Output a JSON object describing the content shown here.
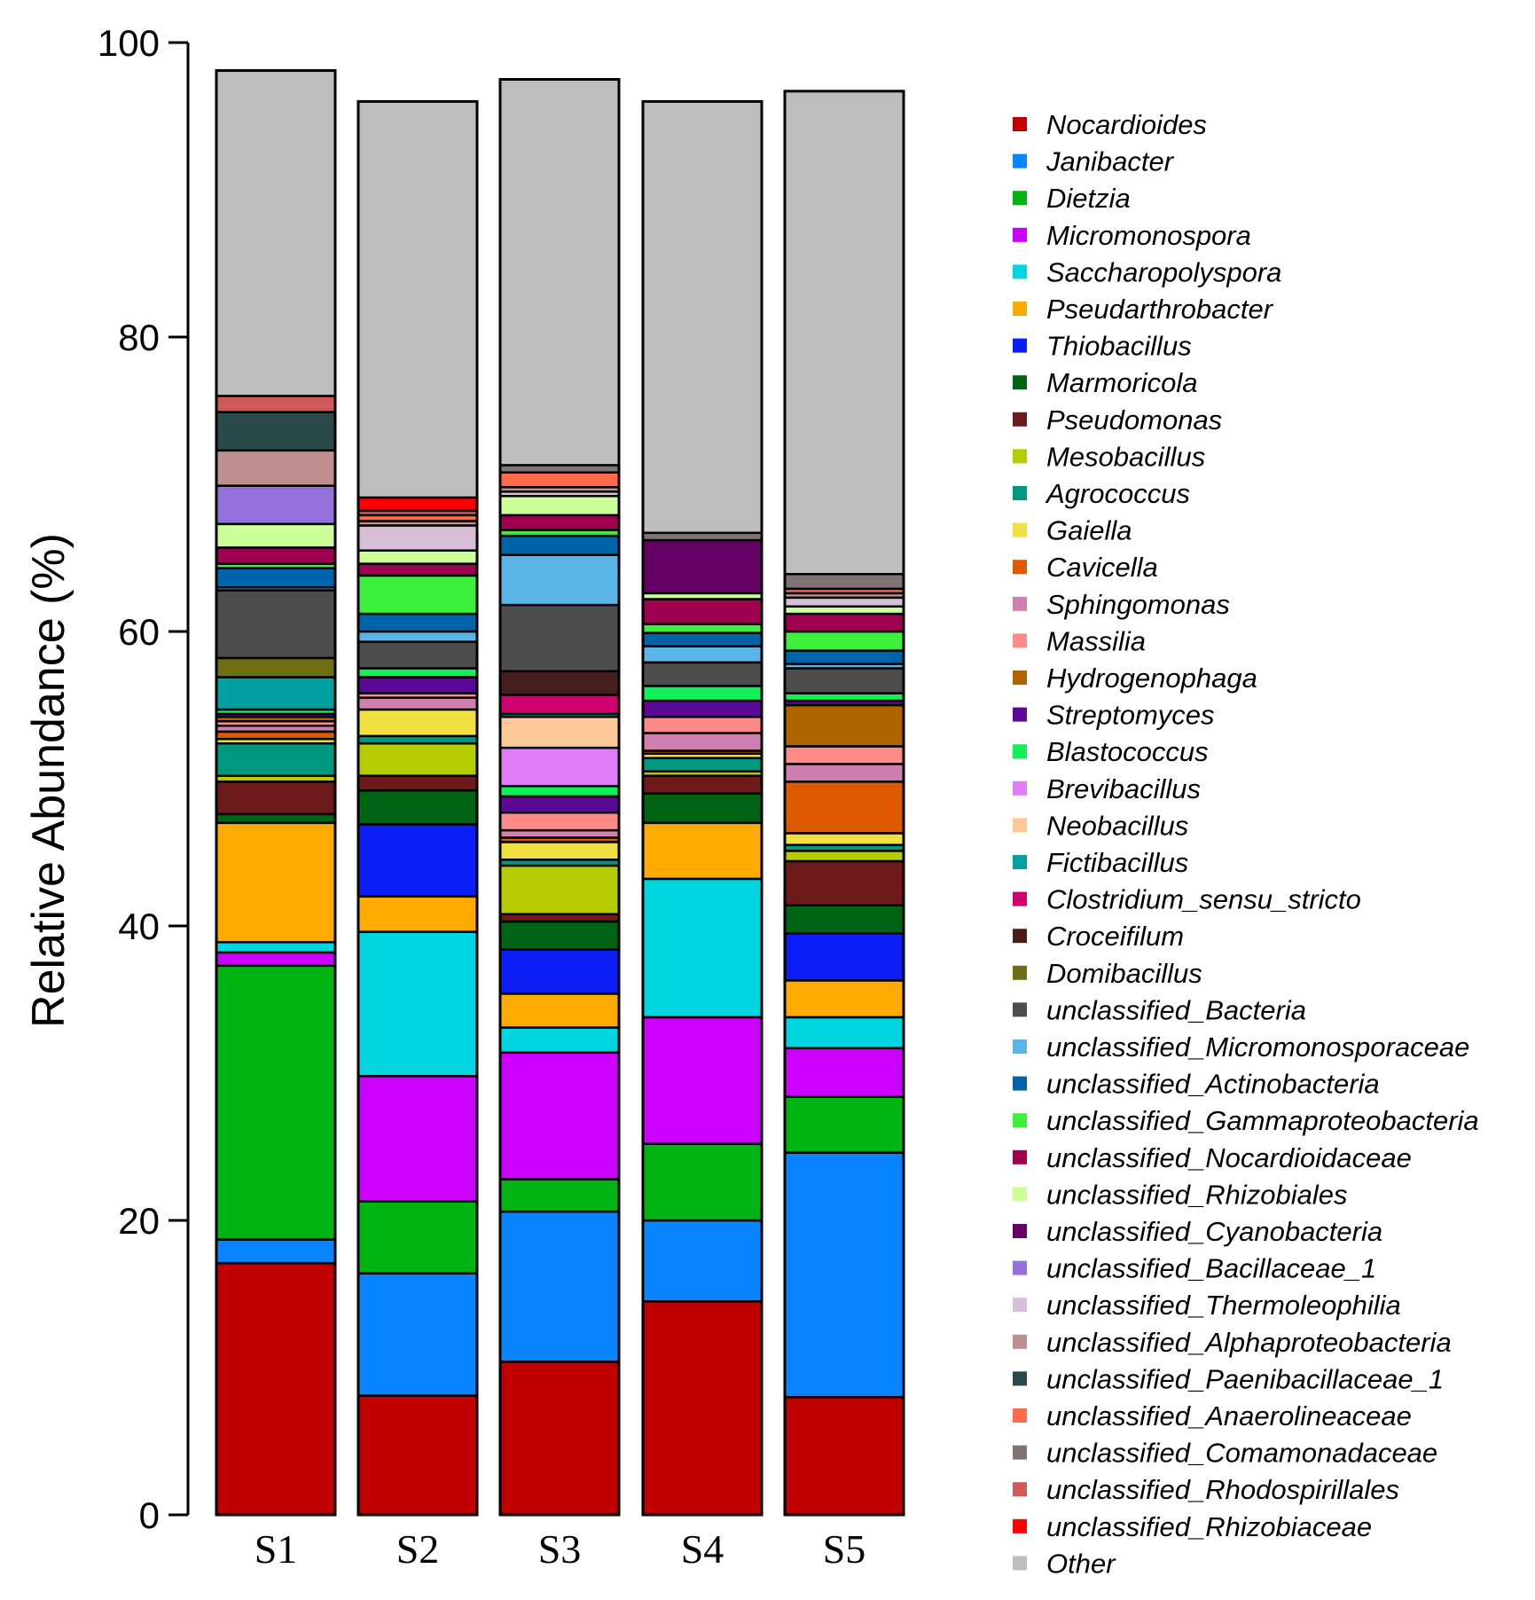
{
  "chart_data": {
    "type": "bar",
    "stacked": true,
    "title": "",
    "xlabel": "",
    "ylabel": "Relative Abundance (%)",
    "ylim": [
      0,
      100
    ],
    "yticks": [
      "0",
      "20",
      "40",
      "60",
      "80",
      "100"
    ],
    "categories": [
      "S1",
      "S2",
      "S3",
      "S4",
      "S5"
    ],
    "series": [
      {
        "name": "Nocardioides",
        "color": "#C00000",
        "values": [
          17.1,
          8.1,
          10.4,
          14.5,
          8.0
        ]
      },
      {
        "name": "Janibacter",
        "color": "#0A84FF",
        "values": [
          1.6,
          8.3,
          10.2,
          5.5,
          16.6
        ]
      },
      {
        "name": "Dietzia",
        "color": "#00B414",
        "values": [
          18.6,
          4.9,
          2.2,
          5.2,
          3.8
        ]
      },
      {
        "name": "Micromonospora",
        "color": "#CC00FF",
        "values": [
          0.9,
          8.5,
          8.6,
          8.6,
          3.3
        ]
      },
      {
        "name": "Saccharopolyspora",
        "color": "#00D5E0",
        "values": [
          0.7,
          9.8,
          1.7,
          9.4,
          2.1
        ]
      },
      {
        "name": "Pseudarthrobacter",
        "color": "#FFAA00",
        "values": [
          8.1,
          2.4,
          2.3,
          3.8,
          2.5
        ]
      },
      {
        "name": "Thiobacillus",
        "color": "#0A1EF5",
        "values": [
          0,
          4.9,
          3.0,
          0,
          3.2
        ]
      },
      {
        "name": "Marmoricola",
        "color": "#006414",
        "values": [
          0.6,
          2.3,
          1.9,
          2.0,
          1.9
        ]
      },
      {
        "name": "Pseudomonas",
        "color": "#6E1A1A",
        "values": [
          2.2,
          1.0,
          0.5,
          1.2,
          3.0
        ]
      },
      {
        "name": "Mesobacillus",
        "color": "#B4CC00",
        "values": [
          0.4,
          2.2,
          3.3,
          0.3,
          0.7
        ]
      },
      {
        "name": "Agrococcus",
        "color": "#009980",
        "values": [
          2.2,
          0.5,
          0.4,
          0.9,
          0.4
        ]
      },
      {
        "name": "Gaiella",
        "color": "#F0E040",
        "values": [
          0.3,
          1.8,
          1.2,
          0.3,
          0.8
        ]
      },
      {
        "name": "Cavicella",
        "color": "#DD5A00",
        "values": [
          0.5,
          0,
          0.3,
          0.2,
          3.5
        ]
      },
      {
        "name": "Sphingomonas",
        "color": "#D080B0",
        "values": [
          0.4,
          0.8,
          0.5,
          1.2,
          1.2
        ]
      },
      {
        "name": "Massilia",
        "color": "#FF8A8A",
        "values": [
          0.3,
          0.3,
          1.2,
          1.1,
          1.2
        ]
      },
      {
        "name": "Hydrogenophaga",
        "color": "#B06400",
        "values": [
          0.3,
          0,
          0,
          0,
          2.8
        ]
      },
      {
        "name": "Streptomyces",
        "color": "#5A0A96",
        "values": [
          0.2,
          1.1,
          1.1,
          1.1,
          0.3
        ]
      },
      {
        "name": "Blastococcus",
        "color": "#14F05A",
        "values": [
          0.3,
          0.6,
          0.7,
          1.0,
          0.5
        ]
      },
      {
        "name": "Brevibacillus",
        "color": "#E07EFA",
        "values": [
          0,
          0,
          2.6,
          0,
          0
        ]
      },
      {
        "name": "Neobacillus",
        "color": "#FFC896",
        "values": [
          0,
          0,
          2.1,
          0,
          0
        ]
      },
      {
        "name": "Fictibacillus",
        "color": "#00A0A0",
        "values": [
          2.2,
          0,
          0.2,
          0,
          0
        ]
      },
      {
        "name": "Clostridium_sensu_stricto",
        "color": "#D0006E",
        "values": [
          0,
          0,
          1.3,
          0,
          0
        ]
      },
      {
        "name": "Croceifilum",
        "color": "#461E1E",
        "values": [
          0,
          0,
          1.6,
          0,
          0
        ]
      },
      {
        "name": "Domibacillus",
        "color": "#6E6E14",
        "values": [
          1.3,
          0,
          0,
          0,
          0
        ]
      },
      {
        "name": "unclassified_Bacteria",
        "color": "#4D4D4D",
        "values": [
          4.6,
          1.8,
          4.5,
          1.6,
          1.7
        ]
      },
      {
        "name": "unclassified_Micromonosporaceae",
        "color": "#5AB4E6",
        "values": [
          0.2,
          0.7,
          3.4,
          1.1,
          0.3
        ]
      },
      {
        "name": "unclassified_Actinobacteria",
        "color": "#0064AA",
        "values": [
          1.3,
          1.2,
          1.3,
          0.9,
          0.9
        ]
      },
      {
        "name": "unclassified_Gammaproteobacteria",
        "color": "#3CF03C",
        "values": [
          0.3,
          2.6,
          0.4,
          0.6,
          1.3
        ]
      },
      {
        "name": "unclassified_Nocardioidaceae",
        "color": "#A00050",
        "values": [
          1.1,
          0.8,
          1.0,
          1.7,
          1.2
        ]
      },
      {
        "name": "unclassified_Rhizobiales",
        "color": "#CCFF99",
        "values": [
          1.6,
          0.9,
          1.3,
          0.4,
          0.5
        ]
      },
      {
        "name": "unclassified_Cyanobacteria",
        "color": "#640064",
        "values": [
          0,
          0,
          0,
          3.6,
          0
        ]
      },
      {
        "name": "unclassified_Bacillaceae_1",
        "color": "#9370DB",
        "values": [
          2.6,
          0,
          0,
          0,
          0
        ]
      },
      {
        "name": "unclassified_Thermoleophilia",
        "color": "#D8BFD8",
        "values": [
          0,
          1.7,
          0.3,
          0,
          0.6
        ]
      },
      {
        "name": "unclassified_Alphaproteobacteria",
        "color": "#C09090",
        "values": [
          2.4,
          0.3,
          0.3,
          0,
          0.3
        ]
      },
      {
        "name": "unclassified_Paenibacillaceae_1",
        "color": "#2A4A4A",
        "values": [
          2.6,
          0,
          0,
          0,
          0
        ]
      },
      {
        "name": "unclassified_Anaerolineaceae",
        "color": "#FF6A4A",
        "values": [
          0,
          0.4,
          1.0,
          0,
          0.3
        ]
      },
      {
        "name": "unclassified_Comamonadaceae",
        "color": "#7F7373",
        "values": [
          0,
          0,
          0.5,
          0.5,
          1.0
        ]
      },
      {
        "name": "unclassified_Rhodospirillales",
        "color": "#D05A5A",
        "values": [
          1.1,
          0.3,
          0,
          0,
          0
        ]
      },
      {
        "name": "unclassified_Rhizobiaceae",
        "color": "#FF0000",
        "values": [
          0,
          0.9,
          0,
          0,
          0
        ]
      },
      {
        "name": "Other",
        "color": "#BEBEBE",
        "values": [
          22.1,
          26.9,
          26.2,
          29.3,
          32.8
        ]
      }
    ]
  }
}
